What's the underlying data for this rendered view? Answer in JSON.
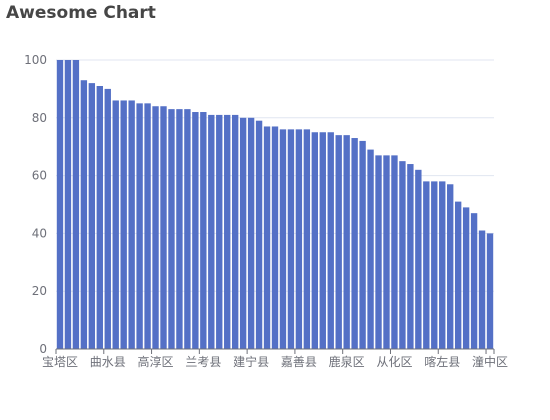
{
  "chart_data": {
    "type": "bar",
    "title": "Awesome Chart",
    "xlabel": "",
    "ylabel": "",
    "ylim": [
      0,
      100
    ],
    "yticks": [
      0,
      20,
      40,
      60,
      80,
      100
    ],
    "grid": true,
    "bar_color": "#5470c6",
    "categories": [
      "宝塔区",
      "",
      "",
      "",
      "",
      "",
      "曲水县",
      "",
      "",
      "",
      "",
      "",
      "高淳区",
      "",
      "",
      "",
      "",
      "",
      "兰考县",
      "",
      "",
      "",
      "",
      "",
      "建宁县",
      "",
      "",
      "",
      "",
      "",
      "嘉善县",
      "",
      "",
      "",
      "",
      "",
      "鹿泉区",
      "",
      "",
      "",
      "",
      "",
      "从化区",
      "",
      "",
      "",
      "",
      "",
      "喀左县",
      "",
      "",
      "",
      "",
      "",
      "潼中区"
    ],
    "values": [
      100,
      100,
      100,
      93,
      92,
      91,
      90,
      86,
      86,
      86,
      85,
      85,
      84,
      84,
      83,
      83,
      83,
      82,
      82,
      81,
      81,
      81,
      81,
      80,
      80,
      79,
      77,
      77,
      76,
      76,
      76,
      76,
      75,
      75,
      75,
      74,
      74,
      73,
      72,
      69,
      67,
      67,
      67,
      65,
      64,
      62,
      58,
      58,
      58,
      57,
      51,
      49,
      47,
      41,
      40
    ]
  }
}
